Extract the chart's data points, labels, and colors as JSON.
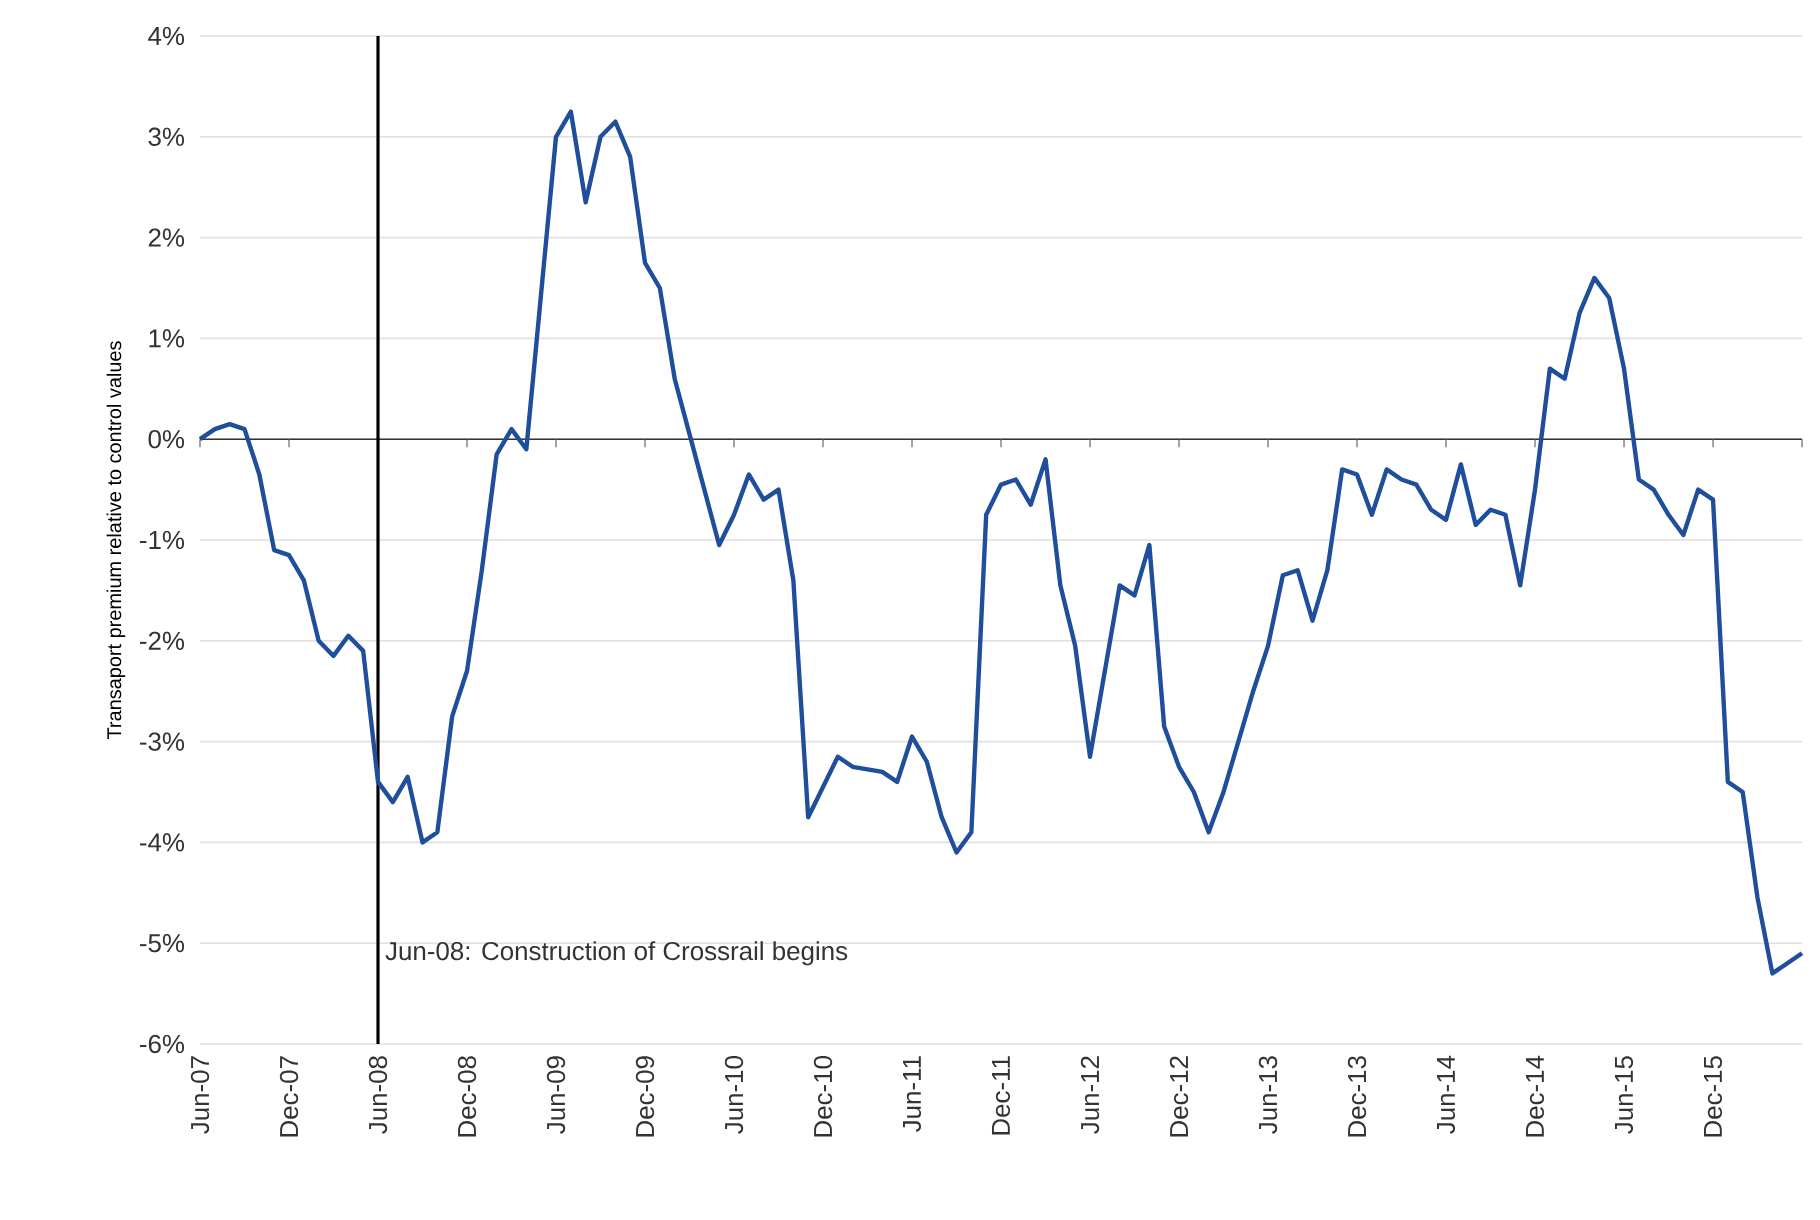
{
  "chart_data": {
    "type": "line",
    "ylabel": "Transaport premium relative to control values",
    "x": [
      "2007-06",
      "2007-07",
      "2007-08",
      "2007-09",
      "2007-10",
      "2007-11",
      "2007-12",
      "2008-01",
      "2008-02",
      "2008-03",
      "2008-04",
      "2008-05",
      "2008-06",
      "2008-07",
      "2008-08",
      "2008-09",
      "2008-10",
      "2008-11",
      "2008-12",
      "2009-01",
      "2009-02",
      "2009-03",
      "2009-04",
      "2009-06",
      "2009-07",
      "2009-08",
      "2009-09",
      "2009-10",
      "2009-11",
      "2009-12",
      "2010-01",
      "2010-02",
      "2010-03",
      "2010-05",
      "2010-06",
      "2010-07",
      "2010-08",
      "2010-09",
      "2010-10",
      "2010-11",
      "2010-12",
      "2011-01",
      "2011-02",
      "2011-04",
      "2011-05",
      "2011-06",
      "2011-07",
      "2011-08",
      "2011-09",
      "2011-10",
      "2011-11",
      "2011-12",
      "2012-01",
      "2012-02",
      "2012-03",
      "2012-04",
      "2012-05",
      "2012-06",
      "2012-08",
      "2012-09",
      "2012-10",
      "2012-11",
      "2012-12",
      "2013-01",
      "2013-02",
      "2013-03",
      "2013-04",
      "2013-05",
      "2013-06",
      "2013-07",
      "2013-08",
      "2013-09",
      "2013-10",
      "2013-11",
      "2013-12",
      "2014-01",
      "2014-02",
      "2014-03",
      "2014-04",
      "2014-05",
      "2014-06",
      "2014-07",
      "2014-08",
      "2014-09",
      "2014-10",
      "2014-11",
      "2014-12",
      "2015-01",
      "2015-02",
      "2015-03",
      "2015-04",
      "2015-05",
      "2015-06",
      "2015-07",
      "2015-08",
      "2015-09",
      "2015-10",
      "2015-11",
      "2015-12",
      "2016-01",
      "2016-02",
      "2016-03",
      "2016-04",
      "2016-06"
    ],
    "series": [
      {
        "color": "#1f4e9c",
        "values": [
          0,
          0.1,
          0.15,
          0.1,
          -0.35,
          -1.1,
          -1.15,
          -1.4,
          -2.0,
          -2.15,
          -1.95,
          -2.1,
          -3.4,
          -3.6,
          -3.35,
          -4.0,
          -3.9,
          -2.75,
          -2.3,
          -1.3,
          -0.15,
          0.1,
          -0.1,
          3.0,
          3.25,
          2.35,
          3.0,
          3.15,
          2.8,
          1.75,
          1.5,
          0.6,
          0.05,
          -1.05,
          -0.75,
          -0.35,
          -0.6,
          -0.5,
          -1.4,
          -3.75,
          -3.45,
          -3.15,
          -3.25,
          -3.3,
          -3.4,
          -2.95,
          -3.2,
          -3.75,
          -4.1,
          -3.9,
          -0.75,
          -0.45,
          -0.4,
          -0.65,
          -0.2,
          -1.45,
          -2.05,
          -3.15,
          -1.45,
          -1.55,
          -1.05,
          -2.85,
          -3.25,
          -3.5,
          -3.9,
          -3.5,
          -3.0,
          -2.5,
          -2.05,
          -1.35,
          -1.3,
          -1.8,
          -1.3,
          -0.3,
          -0.35,
          -0.75,
          -0.3,
          -0.4,
          -0.45,
          -0.7,
          -0.8,
          -0.25,
          -0.85,
          -0.7,
          -0.75,
          -1.45,
          -0.5,
          0.7,
          0.6,
          1.25,
          1.6,
          1.4,
          0.7,
          -0.4,
          -0.5,
          -0.75,
          -0.95,
          -0.5,
          -0.6,
          -3.4,
          -3.5,
          -4.55,
          -5.3,
          -5.1
        ]
      }
    ],
    "xlim": [
      "2007-06",
      "2016-06"
    ],
    "xticks": [
      {
        "value": "2007-06",
        "label": "Jun-07"
      },
      {
        "value": "2007-12",
        "label": "Dec-07"
      },
      {
        "value": "2008-06",
        "label": "Jun-08"
      },
      {
        "value": "2008-12",
        "label": "Dec-08"
      },
      {
        "value": "2009-06",
        "label": "Jun-09"
      },
      {
        "value": "2009-12",
        "label": "Dec-09"
      },
      {
        "value": "2010-06",
        "label": "Jun-10"
      },
      {
        "value": "2010-12",
        "label": "Dec-10"
      },
      {
        "value": "2011-06",
        "label": "Jun-11"
      },
      {
        "value": "2011-12",
        "label": "Dec-11"
      },
      {
        "value": "2012-06",
        "label": "Jun-12"
      },
      {
        "value": "2012-12",
        "label": "Dec-12"
      },
      {
        "value": "2013-06",
        "label": "Jun-13"
      },
      {
        "value": "2013-12",
        "label": "Dec-13"
      },
      {
        "value": "2014-06",
        "label": "Jun-14"
      },
      {
        "value": "2014-12",
        "label": "Dec-14"
      },
      {
        "value": "2015-06",
        "label": "Jun-15"
      },
      {
        "value": "2015-12",
        "label": "Dec-15"
      },
      {
        "value": "2016-06",
        "label": null
      }
    ],
    "ylim": [
      -6,
      4
    ],
    "yticks": [
      {
        "value": -6,
        "label": "-6%"
      },
      {
        "value": -5,
        "label": "-5%"
      },
      {
        "value": -4,
        "label": "-4%"
      },
      {
        "value": -3,
        "label": "-3%"
      },
      {
        "value": -2,
        "label": "-2%"
      },
      {
        "value": -1,
        "label": "-1%"
      },
      {
        "value": 0,
        "label": "0%"
      },
      {
        "value": 1,
        "label": "1%"
      },
      {
        "value": 2,
        "label": "2%"
      },
      {
        "value": 3,
        "label": "3%"
      },
      {
        "value": 4,
        "label": "4%"
      }
    ],
    "grid": "y",
    "ref_lines": [
      {
        "axis": "x",
        "value": "2008-06",
        "label": "Jun-08: Construction of Crossrail begins",
        "color": "#000000"
      }
    ]
  }
}
